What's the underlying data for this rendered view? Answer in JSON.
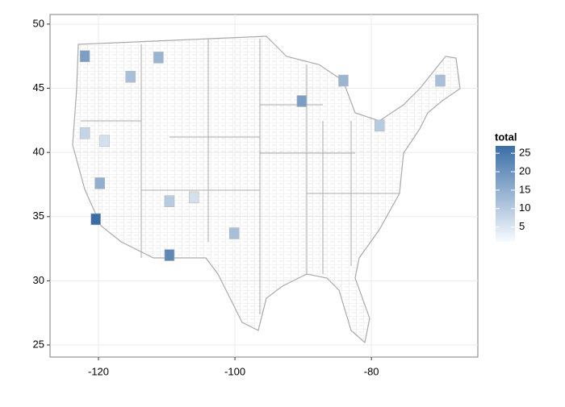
{
  "chart_data": {
    "type": "map",
    "x": [
      -120.4,
      -109.6,
      -122.0,
      -111.2,
      -115.3,
      -90.2,
      -69.9,
      -119.8,
      -100.1,
      -84.1,
      -78.8,
      -109.6,
      -106.0,
      -122.0,
      -119.1
    ],
    "y": [
      34.8,
      32.0,
      47.5,
      47.4,
      45.9,
      44.0,
      45.6,
      37.6,
      33.7,
      45.6,
      42.1,
      36.2,
      36.5,
      41.5,
      40.9
    ],
    "values": [
      27,
      22,
      18,
      14,
      12,
      18,
      12,
      15,
      12,
      14,
      10,
      10,
      6,
      8,
      6
    ],
    "xlim": [
      -127.1,
      -64.4
    ],
    "ylim": [
      24.06,
      50.75
    ],
    "xticks": [
      -120,
      -100,
      -80
    ],
    "yticks": [
      25,
      30,
      35,
      40,
      45,
      50
    ],
    "grid": true,
    "legend": {
      "title": "total",
      "ticks": [
        5,
        10,
        15,
        20,
        25
      ],
      "colorlim": [
        1,
        27
      ],
      "low_color": "#f7fbff",
      "high_color": "#3a6ea5"
    }
  }
}
